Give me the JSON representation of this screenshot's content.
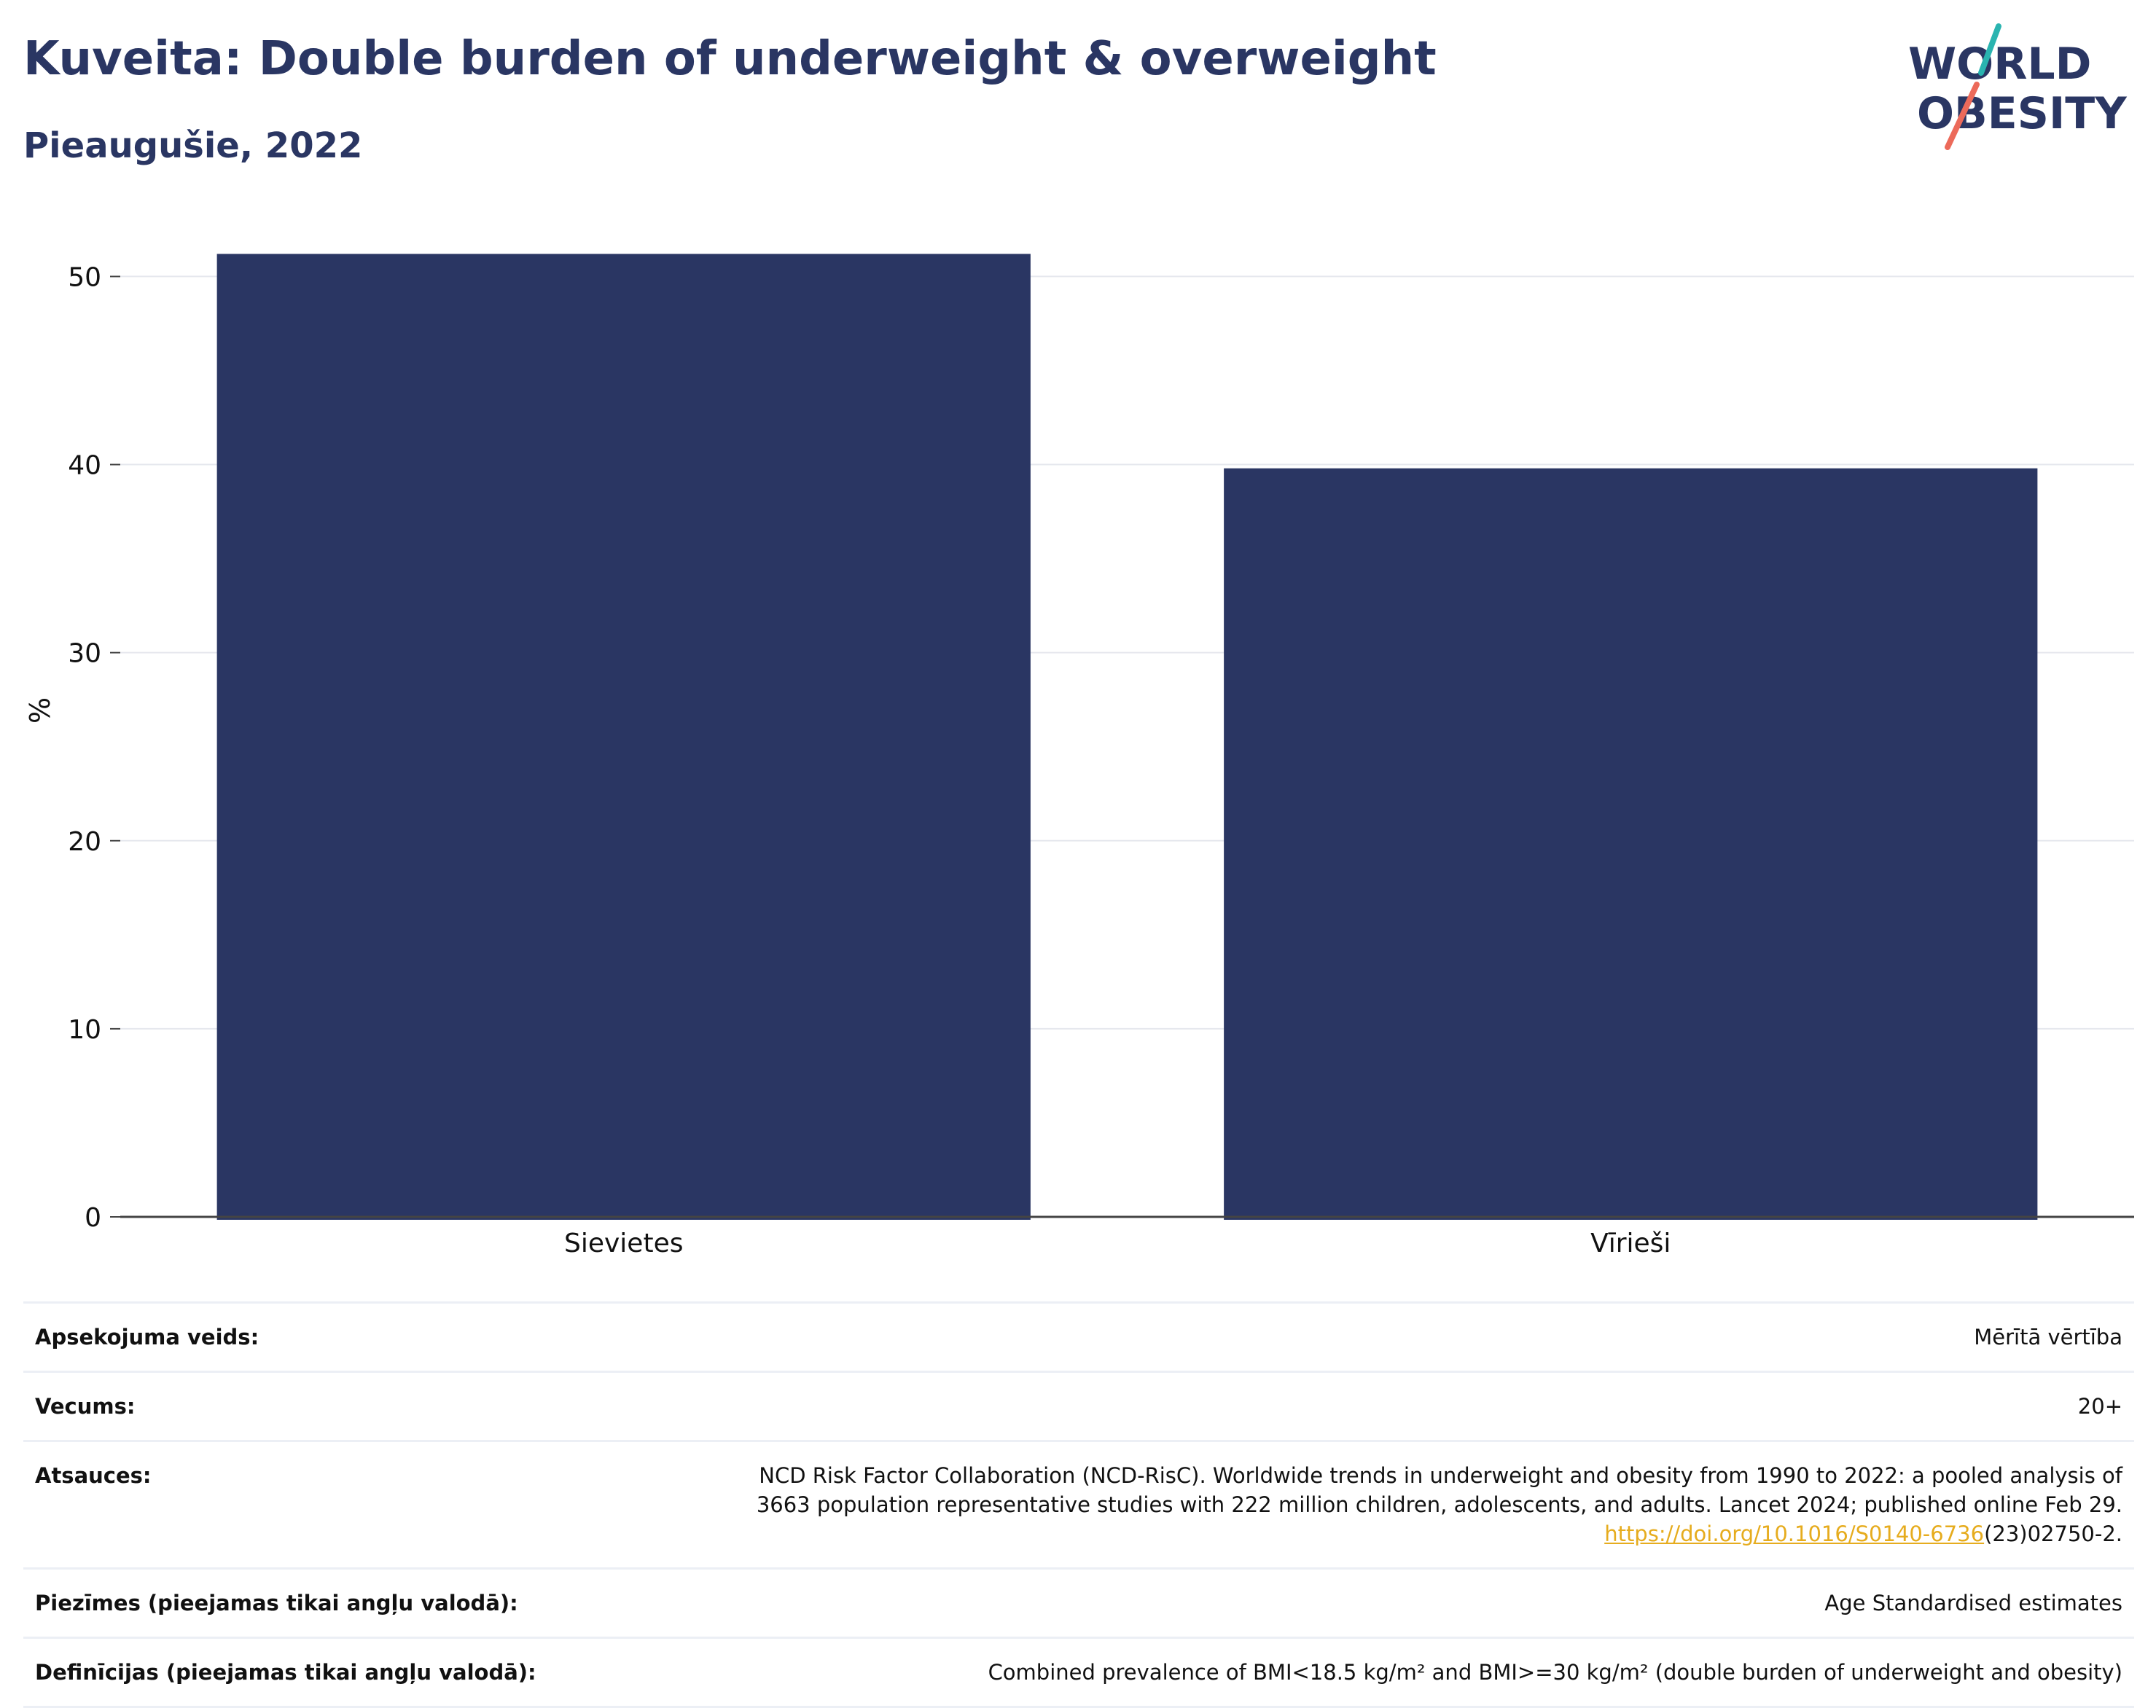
{
  "header": {
    "title": "Kuveita: Double burden of underweight & overweight",
    "subtitle": "Pieaugušie, 2022"
  },
  "logo": {
    "line1": "WORLD",
    "line2": "OBESITY"
  },
  "colors": {
    "bar": "#2a3663",
    "title": "#2a3663",
    "grid": "#e6e8ee",
    "axis": "#444444",
    "link": "#e6ac1e",
    "logo_teal": "#2ab4b0",
    "logo_coral": "#ec6a5a"
  },
  "chart_data": {
    "type": "bar",
    "categories": [
      "Sievietes",
      "Vīrieši"
    ],
    "values": [
      51.2,
      39.8
    ],
    "title": "Kuveita: Double burden of underweight & overweight",
    "subtitle": "Pieaugušie, 2022",
    "xlabel": "",
    "ylabel": "%",
    "ylim": [
      0,
      53
    ],
    "yticks": [
      0,
      10,
      20,
      30,
      40,
      50
    ],
    "grid": true,
    "legend": "none"
  },
  "info": {
    "rows": [
      {
        "label": "Apsekojuma veids:",
        "value": "Mērītā vērtība"
      },
      {
        "label": "Vecums:",
        "value": "20+"
      },
      {
        "label": "Atsauces:",
        "value_line1": "NCD Risk Factor Collaboration (NCD-RisC). Worldwide trends in underweight and obesity from 1990 to 2022: a pooled analysis of",
        "value_line2": "3663 population representative studies with 222 million children, adolescents, and adults. Lancet 2024; published online Feb 29.",
        "link_text": "https://doi.org/10.1016/S0140-6736",
        "link_suffix": "(23)02750-2."
      },
      {
        "label": "Piezīmes (pieejamas tikai angļu valodā):",
        "value": "Age Standardised estimates"
      },
      {
        "label": "Definīcijas (pieejamas tikai angļu valodā):",
        "value": "Combined prevalence of BMI<18.5 kg/m² and BMI>=30 kg/m² (double burden of underweight and obesity)"
      }
    ]
  }
}
